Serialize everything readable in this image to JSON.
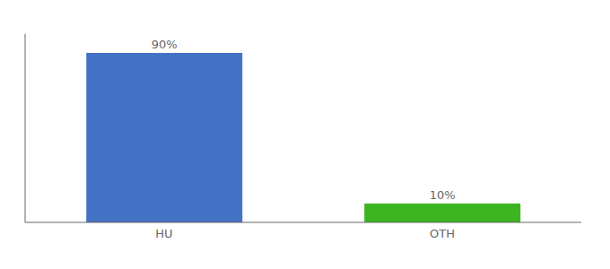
{
  "chart_data": {
    "type": "bar",
    "categories": [
      "HU",
      "OTH"
    ],
    "values": [
      90,
      10
    ],
    "value_labels": [
      "90%",
      "10%"
    ],
    "colors": [
      "#4472c4",
      "#3cb520"
    ],
    "ylim": [
      0,
      100
    ],
    "grid": false,
    "data_labels": true,
    "tick_labels": "x"
  }
}
